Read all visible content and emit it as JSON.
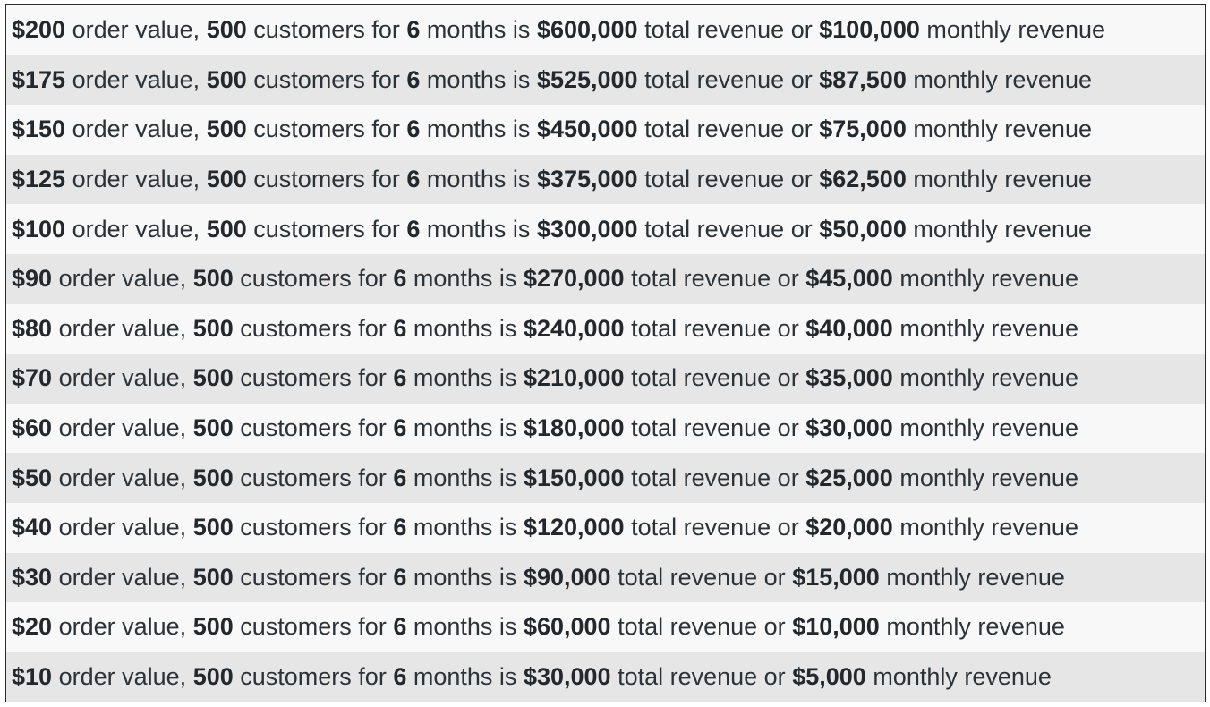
{
  "phrases": {
    "order_value": "order value,",
    "customers_for": "customers for",
    "months_is": "months is",
    "total_revenue_or": "total revenue or",
    "monthly_revenue": "monthly revenue"
  },
  "rows": [
    {
      "order_value": "$200",
      "customers": "500",
      "months": "6",
      "total_revenue": "$600,000",
      "monthly_revenue": "$100,000"
    },
    {
      "order_value": "$175",
      "customers": "500",
      "months": "6",
      "total_revenue": "$525,000",
      "monthly_revenue": "$87,500"
    },
    {
      "order_value": "$150",
      "customers": "500",
      "months": "6",
      "total_revenue": "$450,000",
      "monthly_revenue": "$75,000"
    },
    {
      "order_value": "$125",
      "customers": "500",
      "months": "6",
      "total_revenue": "$375,000",
      "monthly_revenue": "$62,500"
    },
    {
      "order_value": "$100",
      "customers": "500",
      "months": "6",
      "total_revenue": "$300,000",
      "monthly_revenue": "$50,000"
    },
    {
      "order_value": "$90",
      "customers": "500",
      "months": "6",
      "total_revenue": "$270,000",
      "monthly_revenue": "$45,000"
    },
    {
      "order_value": "$80",
      "customers": "500",
      "months": "6",
      "total_revenue": "$240,000",
      "monthly_revenue": "$40,000"
    },
    {
      "order_value": "$70",
      "customers": "500",
      "months": "6",
      "total_revenue": "$210,000",
      "monthly_revenue": "$35,000"
    },
    {
      "order_value": "$60",
      "customers": "500",
      "months": "6",
      "total_revenue": "$180,000",
      "monthly_revenue": "$30,000"
    },
    {
      "order_value": "$50",
      "customers": "500",
      "months": "6",
      "total_revenue": "$150,000",
      "monthly_revenue": "$25,000"
    },
    {
      "order_value": "$40",
      "customers": "500",
      "months": "6",
      "total_revenue": "$120,000",
      "monthly_revenue": "$20,000"
    },
    {
      "order_value": "$30",
      "customers": "500",
      "months": "6",
      "total_revenue": "$90,000",
      "monthly_revenue": "$15,000"
    },
    {
      "order_value": "$20",
      "customers": "500",
      "months": "6",
      "total_revenue": "$60,000",
      "monthly_revenue": "$10,000"
    },
    {
      "order_value": "$10",
      "customers": "500",
      "months": "6",
      "total_revenue": "$30,000",
      "monthly_revenue": "$5,000"
    }
  ],
  "colors": {
    "row_light": "#f8f8f8",
    "row_dark": "#e6e6e6",
    "text": "#2c3338",
    "border": "#2b2b2b"
  }
}
